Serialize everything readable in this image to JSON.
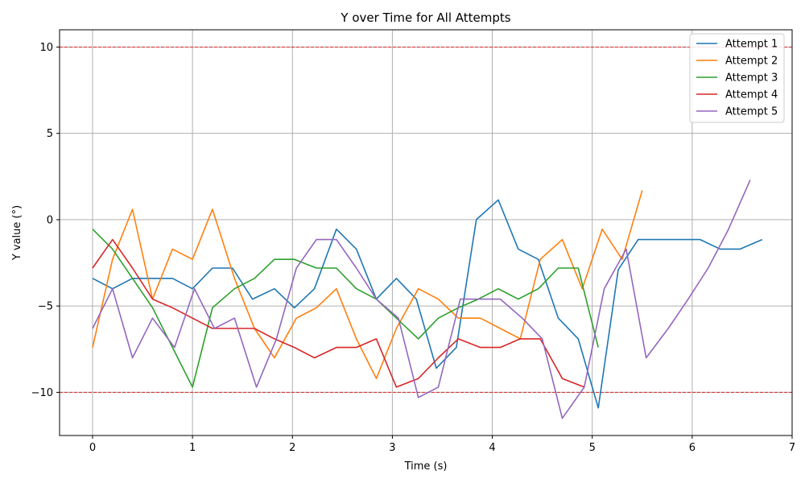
{
  "chart_data": {
    "type": "line",
    "title": "Y over Time for All Attempts",
    "xlabel": "Time (s)",
    "ylabel": "Y value (°)",
    "xlim": [
      -0.33,
      7.0
    ],
    "ylim": [
      -12.5,
      11.0
    ],
    "xticks": [
      0,
      1,
      2,
      3,
      4,
      5,
      6,
      7
    ],
    "yticks": [
      -10,
      -5,
      0,
      5,
      10
    ],
    "grid": true,
    "legend_position": "top-right",
    "reference_lines": [
      {
        "y": 10,
        "color": "#d62728",
        "style": "dashed"
      },
      {
        "y": -10,
        "color": "#d62728",
        "style": "dashed"
      }
    ],
    "series": [
      {
        "name": "Attempt 1",
        "color": "#1f77b4",
        "x": [
          0,
          0.2,
          0.4,
          0.6,
          0.8,
          1.0,
          1.2,
          1.4,
          1.6,
          1.82,
          2.02,
          2.22,
          2.44,
          2.64,
          2.84,
          3.04,
          3.24,
          3.44,
          3.64,
          3.84,
          4.06,
          4.26,
          4.46,
          4.66,
          4.86,
          5.06,
          5.26,
          5.46,
          5.66,
          5.86,
          6.08,
          6.28,
          6.48,
          6.7
        ],
        "y": [
          -3.4,
          -4.0,
          -3.4,
          -3.4,
          -3.4,
          -4.0,
          -2.8,
          -2.8,
          -4.6,
          -4.0,
          -5.1,
          -4.0,
          -0.55,
          -1.7,
          -4.6,
          -3.4,
          -4.6,
          -8.6,
          -7.4,
          0.0,
          1.15,
          -1.7,
          -2.3,
          -5.7,
          -6.9,
          -10.9,
          -2.9,
          -1.15,
          -1.15,
          -1.15,
          -1.15,
          -1.7,
          -1.7,
          -1.15
        ]
      },
      {
        "name": "Attempt 2",
        "color": "#ff7f0e",
        "x": [
          0,
          0.2,
          0.4,
          0.6,
          0.8,
          1.0,
          1.2,
          1.42,
          1.62,
          1.82,
          2.04,
          2.24,
          2.44,
          2.64,
          2.84,
          3.04,
          3.26,
          3.46,
          3.66,
          3.88,
          4.08,
          4.28,
          4.48,
          4.7,
          4.9,
          5.1,
          5.3,
          5.5
        ],
        "y": [
          -7.4,
          -2.3,
          0.6,
          -4.6,
          -1.7,
          -2.3,
          0.6,
          -3.4,
          -6.3,
          -8.0,
          -5.7,
          -5.1,
          -4.0,
          -6.9,
          -9.2,
          -6.3,
          -4.0,
          -4.6,
          -5.7,
          -5.7,
          -6.3,
          -6.9,
          -2.3,
          -1.15,
          -4.0,
          -0.55,
          -2.3,
          1.7
        ]
      },
      {
        "name": "Attempt 3",
        "color": "#2ca02c",
        "x": [
          0,
          0.2,
          0.4,
          0.6,
          0.8,
          1.0,
          1.2,
          1.42,
          1.62,
          1.82,
          2.02,
          2.24,
          2.44,
          2.64,
          2.84,
          3.04,
          3.26,
          3.46,
          3.66,
          3.86,
          4.06,
          4.26,
          4.46,
          4.66,
          4.86,
          5.06
        ],
        "y": [
          -0.55,
          -1.7,
          -3.4,
          -5.1,
          -7.4,
          -9.7,
          -5.1,
          -4.0,
          -3.4,
          -2.3,
          -2.3,
          -2.8,
          -2.8,
          -4.0,
          -4.6,
          -5.7,
          -6.9,
          -5.7,
          -5.1,
          -4.6,
          -4.0,
          -4.6,
          -4.0,
          -2.8,
          -2.8,
          -7.4
        ]
      },
      {
        "name": "Attempt 4",
        "color": "#d62728",
        "x": [
          0,
          0.2,
          0.4,
          0.6,
          0.8,
          1.0,
          1.2,
          1.42,
          1.62,
          1.82,
          2.02,
          2.22,
          2.44,
          2.64,
          2.84,
          3.04,
          3.26,
          3.46,
          3.66,
          3.88,
          4.08,
          4.28,
          4.48,
          4.7,
          4.92
        ],
        "y": [
          -2.8,
          -1.15,
          -2.8,
          -4.6,
          -5.1,
          -5.7,
          -6.3,
          -6.3,
          -6.3,
          -6.9,
          -7.4,
          -8.0,
          -7.4,
          -7.4,
          -6.9,
          -9.7,
          -9.2,
          -8.0,
          -6.9,
          -7.4,
          -7.4,
          -6.9,
          -6.9,
          -9.2,
          -9.7
        ]
      },
      {
        "name": "Attempt 5",
        "color": "#9467bd",
        "x": [
          0,
          0.2,
          0.4,
          0.6,
          0.82,
          1.02,
          1.22,
          1.42,
          1.64,
          1.84,
          2.04,
          2.24,
          2.44,
          2.64,
          2.84,
          3.06,
          3.26,
          3.46,
          3.68,
          3.88,
          4.08,
          4.3,
          4.5,
          4.7,
          4.92,
          5.12,
          5.34,
          5.54,
          5.76,
          5.96,
          6.16,
          6.36,
          6.58
        ],
        "y": [
          -6.3,
          -4.0,
          -8.0,
          -5.7,
          -7.4,
          -4.0,
          -6.3,
          -5.7,
          -9.7,
          -6.9,
          -2.8,
          -1.15,
          -1.15,
          -2.8,
          -4.6,
          -5.7,
          -10.3,
          -9.7,
          -4.6,
          -4.6,
          -4.6,
          -5.7,
          -6.9,
          -11.5,
          -9.7,
          -4.0,
          -1.7,
          -8.0,
          -6.3,
          -4.6,
          -2.8,
          -0.6,
          2.3
        ]
      }
    ]
  }
}
